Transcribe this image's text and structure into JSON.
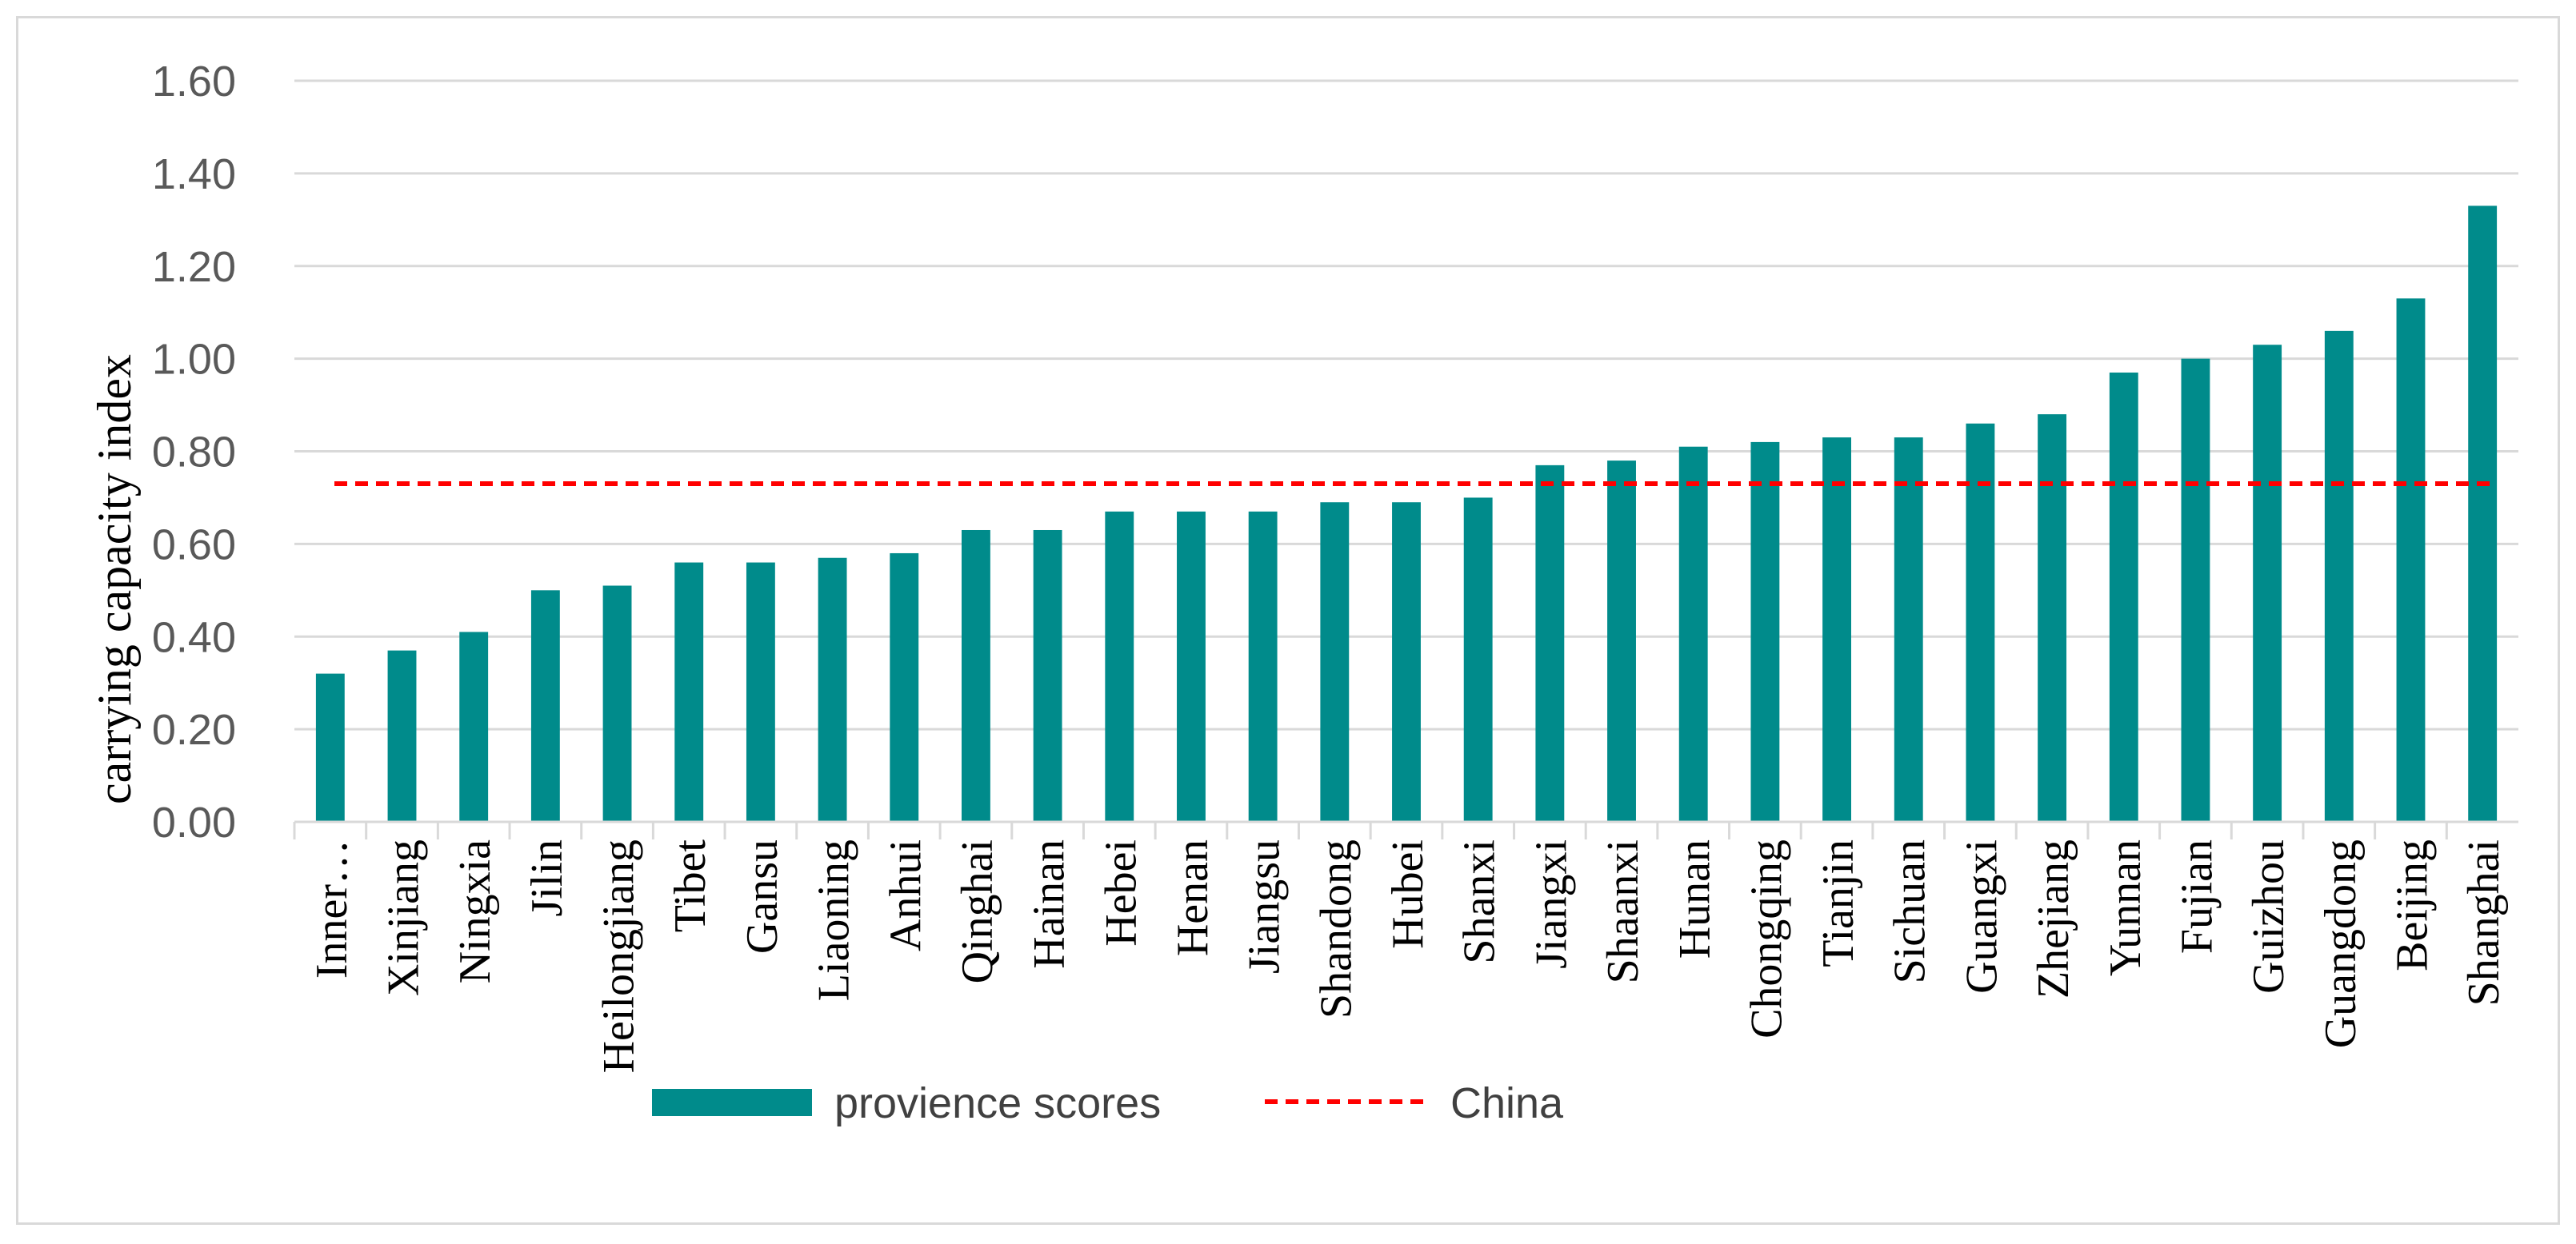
{
  "chart_data": {
    "type": "bar",
    "title": "",
    "xlabel": "",
    "ylabel": "carrying capacity index",
    "ylim": [
      0,
      1.6
    ],
    "y_ticks": [
      "0.00",
      "0.20",
      "0.40",
      "0.60",
      "0.80",
      "1.00",
      "1.20",
      "1.40",
      "1.60"
    ],
    "grid": true,
    "legend_position": "bottom",
    "categories": [
      "Inner…",
      "Xinjiang",
      "Ningxia",
      "Jilin",
      "Heilongjiang",
      "Tibet",
      "Gansu",
      "Liaoning",
      "Anhui",
      "Qinghai",
      "Hainan",
      "Hebei",
      "Henan",
      "Jiangsu",
      "Shandong",
      "Hubei",
      "Shanxi",
      "Jiangxi",
      "Shaanxi",
      "Hunan",
      "Chongqing",
      "Tianjin",
      "Sichuan",
      "Guangxi",
      "Zhejiang",
      "Yunnan",
      "Fujian",
      "Guizhou",
      "Guangdong",
      "Beijing",
      "Shanghai"
    ],
    "series": [
      {
        "name": "provience scores",
        "type": "bar",
        "color": "#008b8b",
        "values": [
          0.32,
          0.37,
          0.41,
          0.5,
          0.51,
          0.56,
          0.56,
          0.57,
          0.58,
          0.63,
          0.63,
          0.67,
          0.67,
          0.67,
          0.69,
          0.69,
          0.7,
          0.77,
          0.78,
          0.81,
          0.82,
          0.83,
          0.83,
          0.86,
          0.88,
          0.97,
          1.0,
          1.03,
          1.06,
          1.13,
          1.33
        ]
      },
      {
        "name": "China",
        "type": "line",
        "style": "dashed",
        "color": "#ff0000",
        "value": 0.73
      }
    ]
  }
}
